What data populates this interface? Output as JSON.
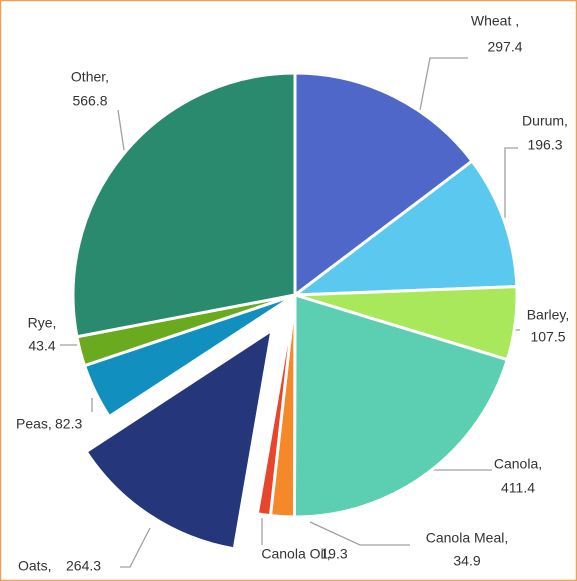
{
  "chart_data": {
    "type": "pie",
    "categories": [
      "Wheat ,",
      "Durum,",
      "Barley,",
      "Canola,",
      "Canola Meal,",
      "Canola Oil,",
      "Oats,",
      "Peas,",
      "Rye,",
      "Other,"
    ],
    "values": [
      297.4,
      196.3,
      107.5,
      411.4,
      34.9,
      19.3,
      264.3,
      82.3,
      43.4,
      566.8
    ],
    "colors": [
      "#4f67c9",
      "#5bc8f0",
      "#a8e85a",
      "#5ccfb3",
      "#f5892a",
      "#e8452c",
      "#25367a",
      "#1190c0",
      "#6aaa1e",
      "#2a8a6d"
    ],
    "exploded": [
      6
    ]
  }
}
